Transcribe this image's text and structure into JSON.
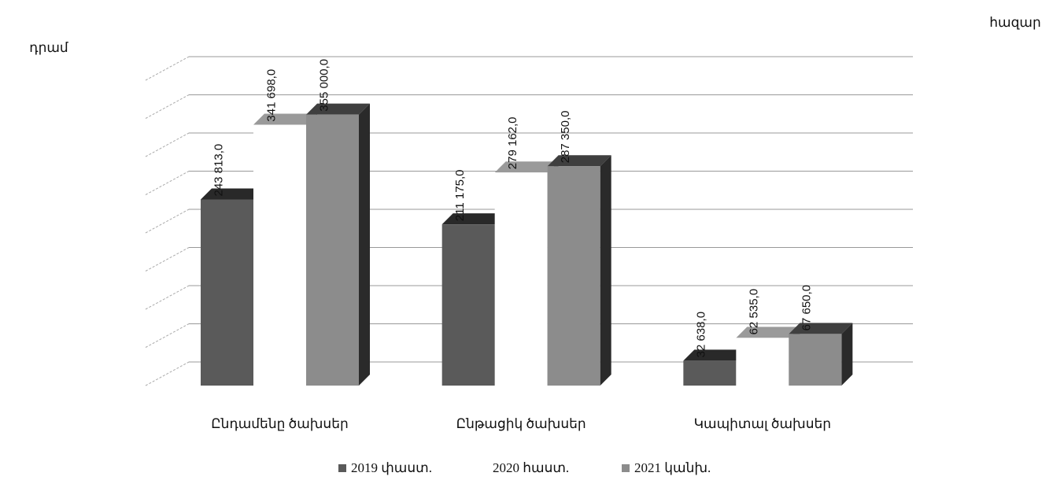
{
  "chart_data": {
    "type": "bar3d",
    "unit_line1": "հազար",
    "unit_line2": "դրամ",
    "categories": [
      "Ընդամենը ծախսեր",
      "Ընթացիկ ծախսեր",
      "Կապիտալ ծախսեր"
    ],
    "series": [
      {
        "name": "2019 փաստ.",
        "color": "#5a5a5a",
        "values": [
          243813,
          211175,
          32638
        ],
        "value_labels": [
          "243 813,0",
          "211 175,0",
          "32 638,0"
        ]
      },
      {
        "name": "2020 հաստ.",
        "color": "#ffffff",
        "values": [
          341698,
          279162,
          62535
        ],
        "value_labels": [
          "341 698,0",
          "279 162,0",
          "62 535,0"
        ]
      },
      {
        "name": "2021 կանխ.",
        "color": "#8c8c8c",
        "values": [
          355000,
          287350,
          67650
        ],
        "value_labels": [
          "355 000,0",
          "287 350,0",
          "67 650,0"
        ]
      }
    ],
    "ylim": [
      0,
      400000
    ],
    "yticks": [
      0,
      50000,
      100000,
      150000,
      200000,
      250000,
      300000,
      350000,
      400000
    ],
    "grid": true
  }
}
